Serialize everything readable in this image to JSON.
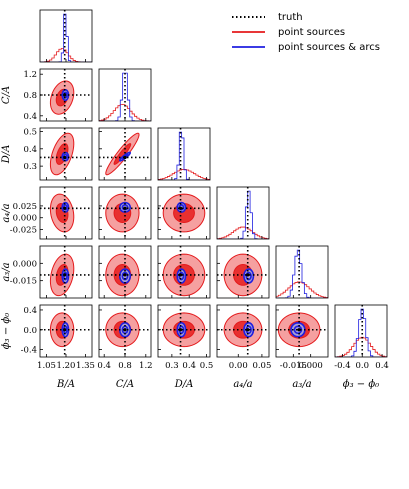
{
  "chart_data": {
    "type": "corner",
    "parameters": [
      {
        "label": "B/A",
        "range": [
          1.0,
          1.4
        ],
        "ticks": [
          1.05,
          1.2,
          1.35
        ],
        "tick_labels": [
          "1.05",
          "1.20",
          "1.35"
        ],
        "truth": 1.19
      },
      {
        "label": "C/A",
        "range": [
          0.3,
          1.3
        ],
        "ticks": [
          0.4,
          0.8,
          1.2
        ],
        "tick_labels": [
          "0.4",
          "0.8",
          "1.2"
        ],
        "truth": 0.8
      },
      {
        "label": "D/A",
        "range": [
          0.22,
          0.52
        ],
        "ticks": [
          0.3,
          0.4,
          0.5
        ],
        "tick_labels": [
          "0.3",
          "0.4",
          "0.5"
        ],
        "truth": 0.35
      },
      {
        "label": "a₄/a",
        "range": [
          -0.045,
          0.065
        ],
        "ticks": [
          0.0,
          0.05
        ],
        "tick_labels": [
          "0.00",
          "0.05"
        ],
        "y_ticks": [
          -0.025,
          0.0,
          0.025
        ],
        "y_tick_labels": [
          "-0.025",
          "0.000",
          "0.025"
        ],
        "truth": 0.02
      },
      {
        "label": "a₃/a",
        "range": [
          -0.03,
          0.015
        ],
        "ticks": [
          -0.015,
          0.0
        ],
        "tick_labels": [
          "-0.015",
          "0.000"
        ],
        "truth": -0.01
      },
      {
        "label": "ϕ₃ − ϕ₀",
        "range": [
          -0.55,
          0.5
        ],
        "ticks": [
          -0.4,
          0.0,
          0.4
        ],
        "tick_labels": [
          "-0.4",
          "0.0",
          "0.4"
        ],
        "truth": 0.0
      }
    ],
    "legend": {
      "placement": "top-right",
      "entries": [
        {
          "label": "truth",
          "style": "dotted",
          "color": "#000000"
        },
        {
          "label": "point sources",
          "style": "solid",
          "color": "#e41a1c"
        },
        {
          "label": "point sources & arcs",
          "style": "solid",
          "color": "#1f1fe0"
        }
      ]
    },
    "series": [
      {
        "name": "point sources",
        "color": "#e41a1c",
        "means": [
          1.17,
          0.75,
          0.37,
          0.01,
          -0.01,
          0.0
        ],
        "sigmas": [
          0.045,
          0.16,
          0.06,
          0.02,
          0.009,
          0.17
        ],
        "correlations": {
          "1-0": 0.3,
          "2-0": 0.5,
          "2-1": 0.93,
          "3-0": -0.2,
          "4-0": 0.3,
          "5-0": 0.0
        },
        "hist_style": "step"
      },
      {
        "name": "point sources & arcs",
        "color": "#1f1fe0",
        "means": [
          1.195,
          0.8,
          0.355,
          0.022,
          -0.011,
          0.0
        ],
        "sigmas": [
          0.012,
          0.05,
          0.012,
          0.005,
          0.003,
          0.07
        ],
        "correlations": {
          "2-1": 0.9
        },
        "hist_style": "step"
      }
    ],
    "grid": false
  },
  "legend_title": "",
  "colors": {
    "red_fill_outer": "#f5a0a0",
    "red_fill_inner": "#e83030",
    "blue_fill": "#9db3f0"
  }
}
